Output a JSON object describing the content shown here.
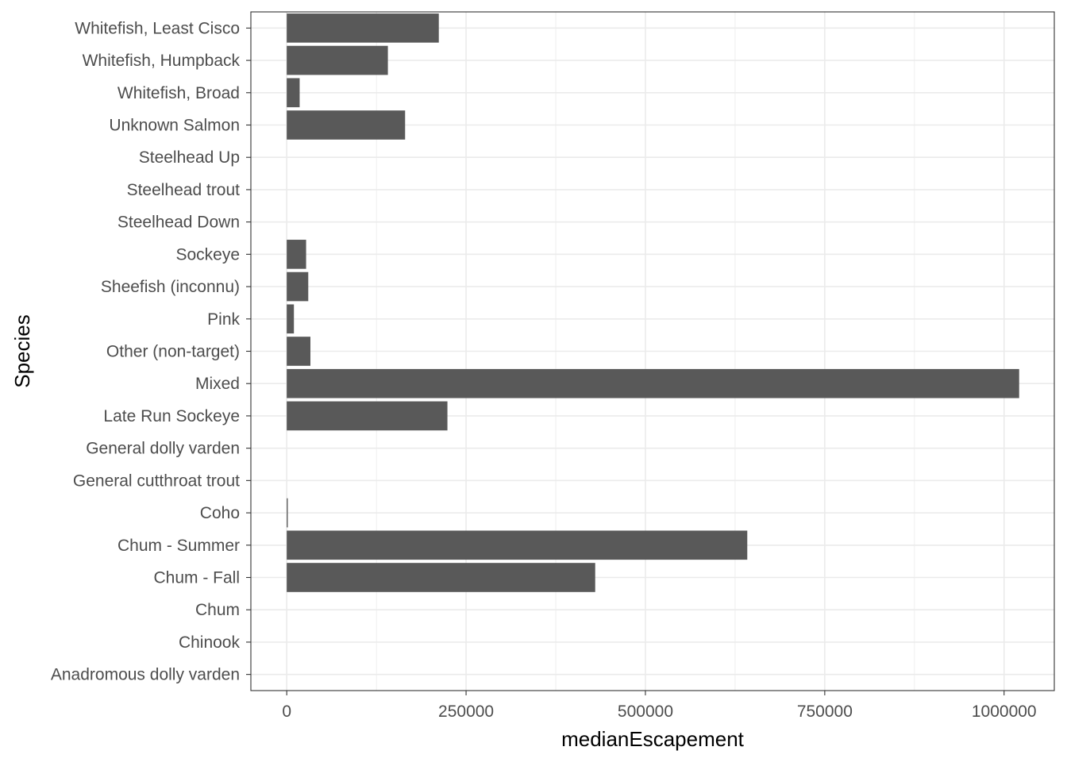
{
  "chart_data": {
    "type": "bar",
    "orientation": "horizontal",
    "xlabel": "medianEscapement",
    "ylabel": "Species",
    "xlim": [
      -50000,
      1070000
    ],
    "xticks": [
      0,
      250000,
      500000,
      750000,
      1000000
    ],
    "xtick_labels": [
      "0",
      "250000",
      "500000",
      "750000",
      "1000000"
    ],
    "grid": true,
    "bar_color": "#595959",
    "categories": [
      "Anadromous dolly varden",
      "Chinook",
      "Chum",
      "Chum - Fall",
      "Chum - Summer",
      "Coho",
      "General cutthroat trout",
      "General dolly varden",
      "Late Run Sockeye",
      "Mixed",
      "Other (non-target)",
      "Pink",
      "Sheefish (inconnu)",
      "Sockeye",
      "Steelhead Down",
      "Steelhead trout",
      "Steelhead Up",
      "Unknown Salmon",
      "Whitefish, Broad",
      "Whitefish, Humpback",
      "Whitefish, Least Cisco"
    ],
    "values": [
      0,
      0,
      0,
      430000,
      642000,
      1500,
      0,
      0,
      224000,
      1021000,
      33000,
      10000,
      30000,
      27000,
      0,
      0,
      0,
      165000,
      18000,
      141000,
      212000
    ]
  }
}
